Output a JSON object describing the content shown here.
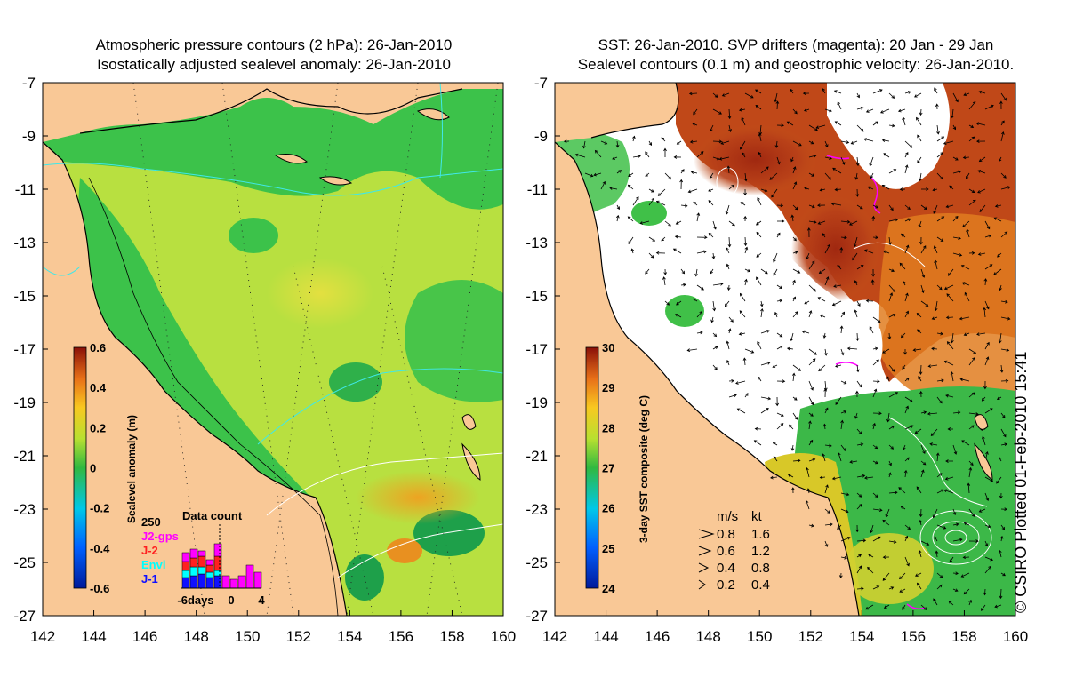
{
  "left_panel": {
    "title_line1": "Atmospheric pressure contours (2 hPa): 26-Jan-2010",
    "title_line2": "Isostatically adjusted sealevel anomaly: 26-Jan-2010",
    "y_ticks": [
      "-7",
      "-9",
      "-11",
      "-13",
      "-15",
      "-17",
      "-19",
      "-21",
      "-23",
      "-25",
      "-27"
    ],
    "x_ticks": [
      "142",
      "144",
      "146",
      "148",
      "150",
      "152",
      "154",
      "156",
      "158",
      "160"
    ],
    "colorbar": {
      "label": "Sealevel anomaly (m)",
      "ticks": [
        "0.6",
        "0.4",
        "0.2",
        "0",
        "-0.2",
        "-0.4",
        "-0.6"
      ],
      "range": [
        -0.6,
        0.6
      ]
    },
    "data_count": {
      "title": "Data count",
      "max_label": "250",
      "legend": [
        {
          "label": "J2-gps",
          "color": "#ff00ff"
        },
        {
          "label": "J-2",
          "color": "#ff2020"
        },
        {
          "label": "Envi",
          "color": "#00ffff"
        },
        {
          "label": "J-1",
          "color": "#1010ff"
        }
      ],
      "x_labels": [
        "-6days",
        "0",
        "4"
      ]
    }
  },
  "right_panel": {
    "title_line1": "SST: 26-Jan-2010. SVP drifters (magenta): 20 Jan - 29 Jan",
    "title_line2": "Sealevel contours (0.1 m) and geostrophic velocity: 26-Jan-2010.",
    "y_ticks": [
      "-7",
      "-9",
      "-11",
      "-13",
      "-15",
      "-17",
      "-19",
      "-21",
      "-23",
      "-25",
      "-27"
    ],
    "x_ticks": [
      "142",
      "144",
      "146",
      "148",
      "150",
      "152",
      "154",
      "156",
      "158",
      "160"
    ],
    "colorbar": {
      "label": "3-day SST composite (deg C)",
      "ticks": [
        "30",
        "29",
        "28",
        "27",
        "26",
        "25",
        "24"
      ],
      "range": [
        24,
        30
      ]
    },
    "speed_legend": {
      "header_ms": "m/s",
      "header_kt": "kt",
      "rows": [
        {
          "ms": "0.8",
          "kt": "1.6"
        },
        {
          "ms": "0.6",
          "kt": "1.2"
        },
        {
          "ms": "0.4",
          "kt": "0.8"
        },
        {
          "ms": "0.2",
          "kt": "0.4"
        }
      ]
    }
  },
  "copyright": "© CSIRO Plotted 01-Feb-2010 15:41",
  "colors": {
    "land": "#f9c896",
    "ocean_green": "#44c84a",
    "sla_yellow": "#c8e83a",
    "sst_red": "#b8401a",
    "sst_orange": "#e88a20",
    "contour_cyan": "#40e8e8",
    "drifter_magenta": "#ff00ff"
  }
}
